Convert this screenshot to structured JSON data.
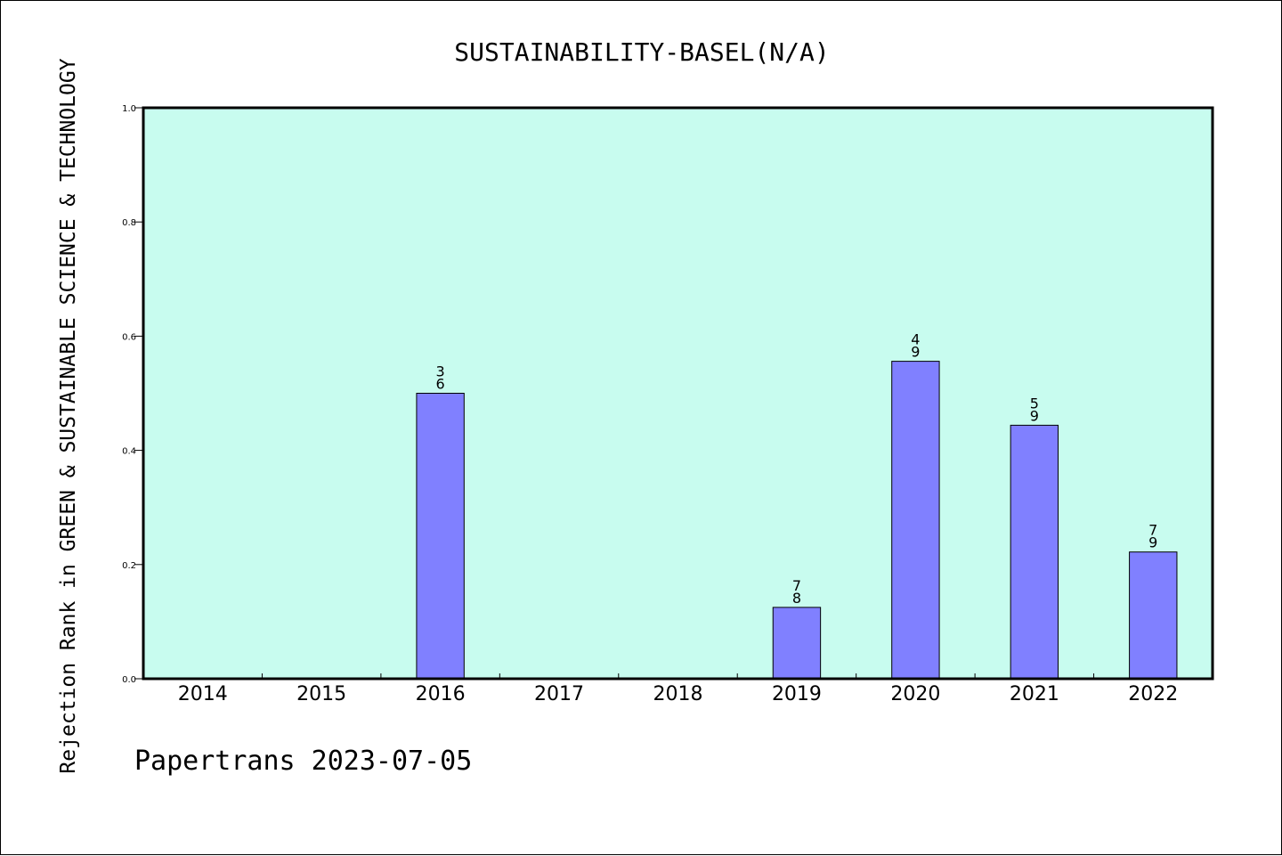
{
  "chart_data": {
    "type": "bar",
    "title": "SUSTAINABILITY-BASEL(N/A)",
    "ylabel": "Rejection Rank in GREEN & SUSTAINABLE SCIENCE & TECHNOLOGY",
    "xlabel": "",
    "ylim": [
      0,
      1.0
    ],
    "yticks": [
      "0.0",
      "0.2",
      "0.4",
      "0.6",
      "0.8",
      "1.0"
    ],
    "categories": [
      "2014",
      "2015",
      "2016",
      "2017",
      "2018",
      "2019",
      "2020",
      "2021",
      "2022"
    ],
    "values": [
      0,
      0,
      0.5,
      0,
      0,
      0.125,
      0.556,
      0.444,
      0.222
    ],
    "bar_labels": [
      null,
      null,
      {
        "num": "3",
        "den": "6"
      },
      null,
      null,
      {
        "num": "7",
        "den": "8"
      },
      {
        "num": "4",
        "den": "9"
      },
      {
        "num": "5",
        "den": "9"
      },
      {
        "num": "7",
        "den": "9"
      }
    ],
    "grid": false,
    "plot_background": "#c8fcef",
    "bar_color": "#8080ff"
  },
  "footer": "Papertrans 2023-07-05"
}
